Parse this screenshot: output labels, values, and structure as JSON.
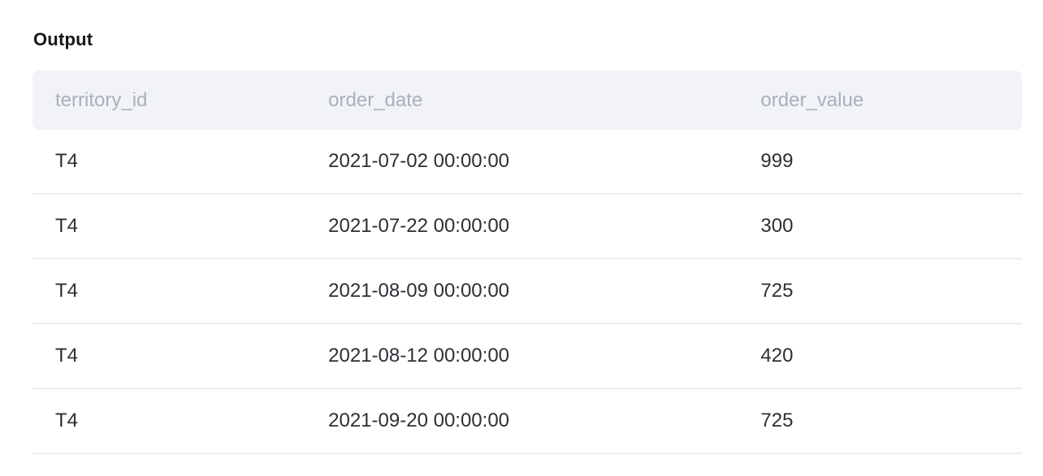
{
  "page": {
    "title": "Output"
  },
  "output_table": {
    "columns": [
      {
        "id": "territory_id",
        "label": "territory_id"
      },
      {
        "id": "order_date",
        "label": "order_date"
      },
      {
        "id": "order_value",
        "label": "order_value"
      }
    ],
    "rows": [
      {
        "territory_id": "T4",
        "order_date": "2021-07-02 00:00:00",
        "order_value": "999"
      },
      {
        "territory_id": "T4",
        "order_date": "2021-07-22 00:00:00",
        "order_value": "300"
      },
      {
        "territory_id": "T4",
        "order_date": "2021-08-09 00:00:00",
        "order_value": "725"
      },
      {
        "territory_id": "T4",
        "order_date": "2021-08-12 00:00:00",
        "order_value": "420"
      },
      {
        "territory_id": "T4",
        "order_date": "2021-09-20 00:00:00",
        "order_value": "725"
      }
    ]
  },
  "colors": {
    "header_bg": "#f1f3f6",
    "header_text": "#a8b0bd",
    "body_text": "#2b3035",
    "divider": "#e9eef4",
    "title_text": "#15181b",
    "page_bg": "#ffffff"
  }
}
